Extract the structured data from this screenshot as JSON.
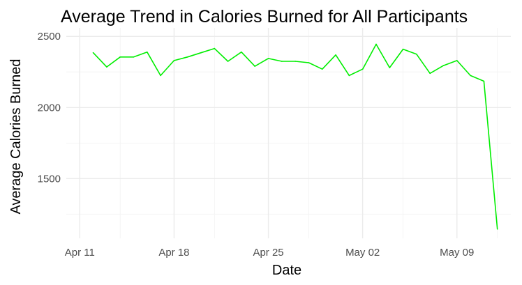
{
  "chart_data": {
    "type": "line",
    "title": "Average Trend in Calories Burned for All Participants",
    "xlabel": "Date",
    "ylabel": "Average Calories Burned",
    "x_type": "date",
    "xlim": [
      "2016-04-10",
      "2016-05-13"
    ],
    "ylim": [
      1080,
      2560
    ],
    "x_ticks": [
      {
        "date": "2016-04-11",
        "label": "Apr 11"
      },
      {
        "date": "2016-04-18",
        "label": "Apr 18"
      },
      {
        "date": "2016-04-25",
        "label": "Apr 25"
      },
      {
        "date": "2016-05-02",
        "label": "May 02"
      },
      {
        "date": "2016-05-09",
        "label": "May 09"
      }
    ],
    "x_minor_ticks": [
      "2016-04-14",
      "2016-04-21",
      "2016-04-28",
      "2016-05-05",
      "2016-05-12"
    ],
    "y_ticks": [
      1500,
      2000,
      2500
    ],
    "y_minor_ticks": [
      1250,
      1750,
      2250
    ],
    "grid": true,
    "legend": false,
    "series": [
      {
        "color": "#00ee00",
        "points": [
          {
            "x": "2016-04-12",
            "y": 2385
          },
          {
            "x": "2016-04-13",
            "y": 2285
          },
          {
            "x": "2016-04-14",
            "y": 2355
          },
          {
            "x": "2016-04-15",
            "y": 2355
          },
          {
            "x": "2016-04-16",
            "y": 2390
          },
          {
            "x": "2016-04-17",
            "y": 2225
          },
          {
            "x": "2016-04-18",
            "y": 2330
          },
          {
            "x": "2016-04-19",
            "y": 2355
          },
          {
            "x": "2016-04-20",
            "y": 2385
          },
          {
            "x": "2016-04-21",
            "y": 2415
          },
          {
            "x": "2016-04-22",
            "y": 2325
          },
          {
            "x": "2016-04-23",
            "y": 2390
          },
          {
            "x": "2016-04-24",
            "y": 2290
          },
          {
            "x": "2016-04-25",
            "y": 2345
          },
          {
            "x": "2016-04-26",
            "y": 2325
          },
          {
            "x": "2016-04-27",
            "y": 2325
          },
          {
            "x": "2016-04-28",
            "y": 2315
          },
          {
            "x": "2016-04-29",
            "y": 2270
          },
          {
            "x": "2016-04-30",
            "y": 2370
          },
          {
            "x": "2016-05-01",
            "y": 2225
          },
          {
            "x": "2016-05-02",
            "y": 2270
          },
          {
            "x": "2016-05-03",
            "y": 2445
          },
          {
            "x": "2016-05-04",
            "y": 2280
          },
          {
            "x": "2016-05-05",
            "y": 2410
          },
          {
            "x": "2016-05-06",
            "y": 2375
          },
          {
            "x": "2016-05-07",
            "y": 2240
          },
          {
            "x": "2016-05-08",
            "y": 2295
          },
          {
            "x": "2016-05-09",
            "y": 2330
          },
          {
            "x": "2016-05-10",
            "y": 2225
          },
          {
            "x": "2016-05-11",
            "y": 2185
          },
          {
            "x": "2016-05-12",
            "y": 1145
          }
        ]
      }
    ]
  }
}
